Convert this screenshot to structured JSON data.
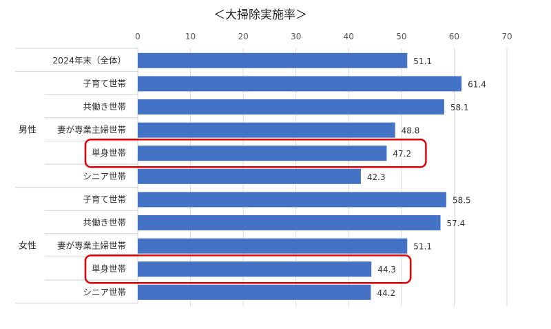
{
  "chart_data": {
    "type": "bar",
    "orientation": "horizontal",
    "title": "＜大掃除実施率＞",
    "xlim": [
      0,
      70
    ],
    "xticks": [
      0,
      10,
      20,
      30,
      40,
      50,
      60,
      70
    ],
    "grid": true,
    "bar_color": "#4472C4",
    "highlight_color": "#E00000",
    "rows": [
      {
        "group": "",
        "label": "2024年末（全体）",
        "value": 51.1,
        "highlighted": false
      },
      {
        "group": "男性",
        "label": "子育て世帯",
        "value": 61.4,
        "highlighted": false
      },
      {
        "group": "男性",
        "label": "共働き世帯",
        "value": 58.1,
        "highlighted": false
      },
      {
        "group": "男性",
        "label": "妻が専業主婦世帯",
        "value": 48.8,
        "highlighted": false
      },
      {
        "group": "男性",
        "label": "単身世帯",
        "value": 47.2,
        "highlighted": true
      },
      {
        "group": "男性",
        "label": "シニア世帯",
        "value": 42.3,
        "highlighted": false
      },
      {
        "group": "女性",
        "label": "子育て世帯",
        "value": 58.5,
        "highlighted": false
      },
      {
        "group": "女性",
        "label": "共働き世帯",
        "value": 57.4,
        "highlighted": false
      },
      {
        "group": "女性",
        "label": "妻が専業主婦世帯",
        "value": 51.1,
        "highlighted": false
      },
      {
        "group": "女性",
        "label": "単身世帯",
        "value": 44.3,
        "highlighted": true
      },
      {
        "group": "女性",
        "label": "シニア世帯",
        "value": 44.2,
        "highlighted": false
      }
    ],
    "groups": [
      "男性",
      "女性"
    ]
  }
}
